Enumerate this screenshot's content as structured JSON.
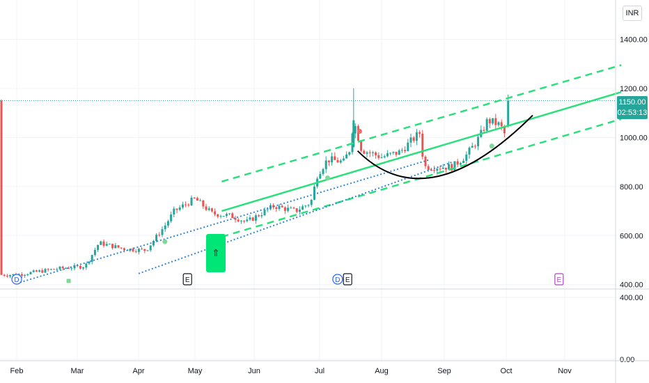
{
  "currency": "INR",
  "price_label": {
    "price": "1150.00",
    "countdown": "02:53:13"
  },
  "colors": {
    "up": "#26a69a",
    "down": "#ef5350",
    "channel": "#29e07a",
    "trendline": "#2f86d6",
    "arc": "#000000",
    "grid": "#f0f3fa",
    "price_line": "#26a69a"
  },
  "events": [
    {
      "type": "D",
      "month": "Feb",
      "day": 1
    },
    {
      "type": "E",
      "month": "Apr",
      "day": 27
    },
    {
      "type": "D",
      "month": "Jul",
      "day": 10
    },
    {
      "type": "E",
      "month": "Jul",
      "day": 15
    },
    {
      "type": "E",
      "month": "Oct",
      "day": 29
    }
  ],
  "arrow_icon": "up-arrow-icon",
  "arrow_glyph": "⇑",
  "chart_data": {
    "type": "candlestick",
    "x_ticks": [
      "Feb",
      "Mar",
      "Apr",
      "May",
      "Jun",
      "Jul",
      "Aug",
      "Sep",
      "Oct",
      "Nov"
    ],
    "y_ticks": [
      "400.00",
      "600.00",
      "800.00",
      "1000.00",
      "1200.00",
      "1400.00"
    ],
    "ylim": [
      385,
      1475
    ],
    "volume_pane": {
      "y_ticks": [
        "0.00",
        "400.00"
      ],
      "ylim": [
        0,
        450
      ]
    },
    "grid": true,
    "price_series_anchors": [
      [
        "Feb 1",
        440
      ],
      [
        "Feb 20",
        465
      ],
      [
        "Mar 5",
        475
      ],
      [
        "Mar 12",
        570
      ],
      [
        "Mar 25",
        545
      ],
      [
        "Apr 5",
        540
      ],
      [
        "Apr 15",
        640
      ],
      [
        "Apr 20",
        700
      ],
      [
        "May 1",
        750
      ],
      [
        "May 10",
        690
      ],
      [
        "May 20",
        680
      ],
      [
        "May 28",
        655
      ],
      [
        "Jun 10",
        720
      ],
      [
        "Jun 20",
        700
      ],
      [
        "Jun 27",
        735
      ],
      [
        "Jun 30",
        850
      ],
      [
        "Jul 5",
        910
      ],
      [
        "Jul 13",
        900
      ],
      [
        "Jul 16",
        950
      ],
      [
        "Jul 18",
        1070
      ],
      [
        "Jul 22",
        950
      ],
      [
        "Aug 1",
        920
      ],
      [
        "Aug 10",
        940
      ],
      [
        "Aug 20",
        1020
      ],
      [
        "Aug 22",
        880
      ],
      [
        "Sep 5",
        880
      ],
      [
        "Sep 12",
        930
      ],
      [
        "Sep 18",
        1000
      ],
      [
        "Sep 22",
        1070
      ],
      [
        "Sep 28",
        1050
      ],
      [
        "Oct 1",
        1000
      ],
      [
        "Oct 2",
        1150
      ]
    ],
    "price_markers": [
      {
        "date": "Feb 25",
        "price": 415,
        "color": "green"
      },
      {
        "date": "Apr 15",
        "price": 575,
        "color": "green"
      },
      {
        "date": "Jul 5",
        "price": 835,
        "color": "green"
      },
      {
        "date": "Jul 21",
        "price": 1025,
        "color": "red"
      },
      {
        "date": "Sep 24",
        "price": 965,
        "color": "green"
      }
    ],
    "drawings": {
      "channel_mid": {
        "from": [
          "May 15",
          700
        ],
        "to": [
          "Nov 30",
          1185
        ]
      },
      "channel_upper": {
        "from": [
          "May 15",
          820
        ],
        "to": [
          "Nov 30",
          1295
        ]
      },
      "channel_lower": {
        "from": [
          "May 15",
          595
        ],
        "to": [
          "Nov 30",
          1075
        ]
      },
      "trend_dotted_1": {
        "from": [
          "Feb 1",
          405
        ],
        "to": [
          "Aug 25",
          910
        ]
      },
      "trend_dotted_2": {
        "from": [
          "Apr 1",
          445
        ],
        "to": [
          "Sep 5",
          900
        ]
      },
      "arc_from": [
        "Jul 20",
        945
      ],
      "arc_to": [
        "Oct 15",
        1090
      ],
      "arc_low": [
        "Aug 28",
        840
      ],
      "arrow_at": [
        "May 15",
        560
      ]
    }
  }
}
